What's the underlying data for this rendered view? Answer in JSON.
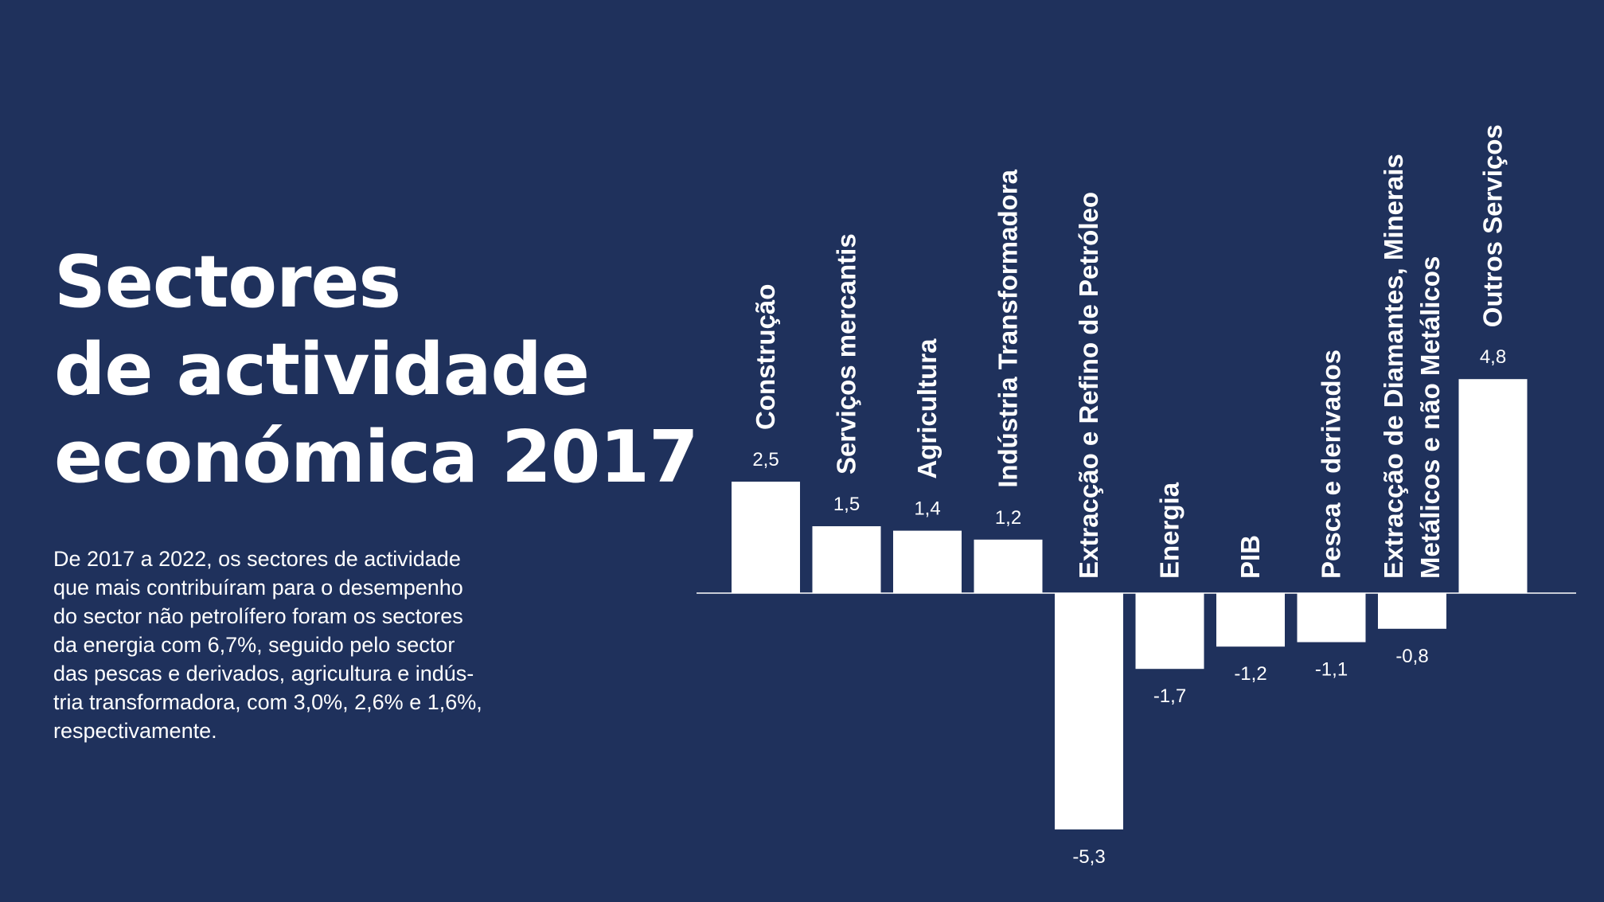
{
  "title": {
    "line1": "Sectores",
    "line2": "de actividade",
    "line3": "económica 2017"
  },
  "description": {
    "lines": [
      "De 2017 a 2022, os sectores de actividade",
      "que mais contribuíram para o desempenho",
      "do sector não petrolífero foram os sectores",
      "da energia com 6,7%, seguido pelo sector",
      "das pescas e derivados, agricultura e indús-",
      "tria transformadora, com 3,0%, 2,6% e 1,6%,",
      "respectivamente."
    ]
  },
  "colors": {
    "background": "#1f315c",
    "bars": "#ffffff",
    "text": "#ffffff"
  },
  "chart_data": {
    "type": "bar",
    "categories": [
      [
        "Construção"
      ],
      [
        "Serviços mercantis"
      ],
      [
        "Agricultura"
      ],
      [
        "Indústria Transformadora"
      ],
      [
        "Extracção e Refino de Petróleo"
      ],
      [
        "Energia"
      ],
      [
        "PIB"
      ],
      [
        "Pesca e derivados"
      ],
      [
        "Extracção de Diamantes, Minerais",
        "Metálicos e não Metálicos"
      ],
      [
        "Outros Serviços"
      ]
    ],
    "values": [
      2.5,
      1.5,
      1.4,
      1.2,
      -5.3,
      -1.7,
      -1.2,
      -1.1,
      -0.8,
      4.8
    ],
    "value_labels": [
      "2,5",
      "1,5",
      "1,4",
      "1,2",
      "-5,3",
      "-1,7",
      "-1,2",
      "-1,1",
      "-0,8",
      "4,8"
    ],
    "baseline": 0,
    "title": "",
    "xlabel": "",
    "ylabel": "",
    "grid": false,
    "legend": "none"
  }
}
